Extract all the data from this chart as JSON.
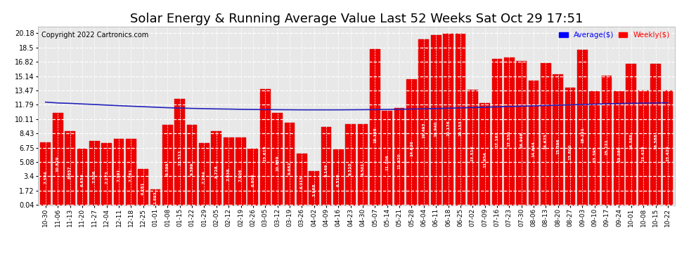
{
  "title": "Solar Energy & Running Average Value Last 52 Weeks Sat Oct 29 17:51",
  "copyright": "Copyright 2022 Cartronics.com",
  "categories": [
    "10-30",
    "11-06",
    "11-13",
    "11-20",
    "11-27",
    "12-04",
    "12-11",
    "12-18",
    "12-25",
    "01-01",
    "01-08",
    "01-15",
    "01-22",
    "01-29",
    "02-05",
    "02-12",
    "02-19",
    "02-26",
    "03-05",
    "03-12",
    "03-19",
    "03-26",
    "04-02",
    "04-09",
    "04-16",
    "04-23",
    "04-30",
    "05-07",
    "05-14",
    "05-21",
    "05-28",
    "06-04",
    "06-11",
    "06-18",
    "06-25",
    "07-02",
    "07-09",
    "07-16",
    "07-23",
    "07-30",
    "08-06",
    "08-13",
    "08-20",
    "08-27",
    "09-03",
    "09-10",
    "09-17",
    "09-24",
    "10-01",
    "10-08",
    "10-15",
    "10-22"
  ],
  "weekly_values": [
    7.384,
    10.829,
    8.657,
    6.634,
    7.506,
    7.273,
    7.791,
    7.781,
    4.281,
    1.893,
    9.399,
    12.511,
    9.399,
    7.284,
    8.728,
    7.938,
    7.906,
    6.606,
    13.615,
    10.859,
    9.682,
    6.015,
    3.968,
    9.149,
    6.51,
    9.51,
    9.501,
    18.355,
    11.106,
    11.42,
    14.82,
    19.493,
    19.94,
    20.176,
    20.153,
    13.516,
    11.954,
    17.161,
    17.33,
    16.946,
    14.644,
    16.675,
    15.396,
    13.8,
    18.221,
    13.395,
    15.221,
    13.38,
    16.588,
    13.429,
    16.588,
    13.429
  ],
  "average_values": [
    12.1,
    12.0,
    11.95,
    11.88,
    11.82,
    11.75,
    11.68,
    11.62,
    11.56,
    11.5,
    11.44,
    11.4,
    11.36,
    11.33,
    11.3,
    11.28,
    11.25,
    11.23,
    11.22,
    11.21,
    11.2,
    11.19,
    11.19,
    11.19,
    11.19,
    11.2,
    11.21,
    11.22,
    11.24,
    11.26,
    11.28,
    11.31,
    11.34,
    11.38,
    11.42,
    11.46,
    11.5,
    11.54,
    11.58,
    11.62,
    11.66,
    11.7,
    11.74,
    11.78,
    11.82,
    11.86,
    11.9,
    11.93,
    11.96,
    11.98,
    12.0,
    12.02
  ],
  "bar_color": "#ee0000",
  "bar_edge_color": "#cc0000",
  "avg_line_color": "#2222bb",
  "background_color": "#ffffff",
  "plot_bg_color": "#e8e8e8",
  "grid_color": "#ffffff",
  "yticks": [
    0.04,
    1.72,
    3.4,
    5.08,
    6.75,
    8.43,
    10.11,
    11.79,
    13.47,
    15.14,
    16.82,
    18.5,
    20.18
  ],
  "ylim": [
    0.0,
    21.0
  ],
  "legend_avg_label": "Average($)",
  "legend_weekly_label": "Weekly($)",
  "legend_avg_color": "#0000ff",
  "legend_weekly_color": "#ff0000",
  "title_fontsize": 13,
  "copyright_fontsize": 7,
  "tick_fontsize": 6.5,
  "ytick_fontsize": 7
}
